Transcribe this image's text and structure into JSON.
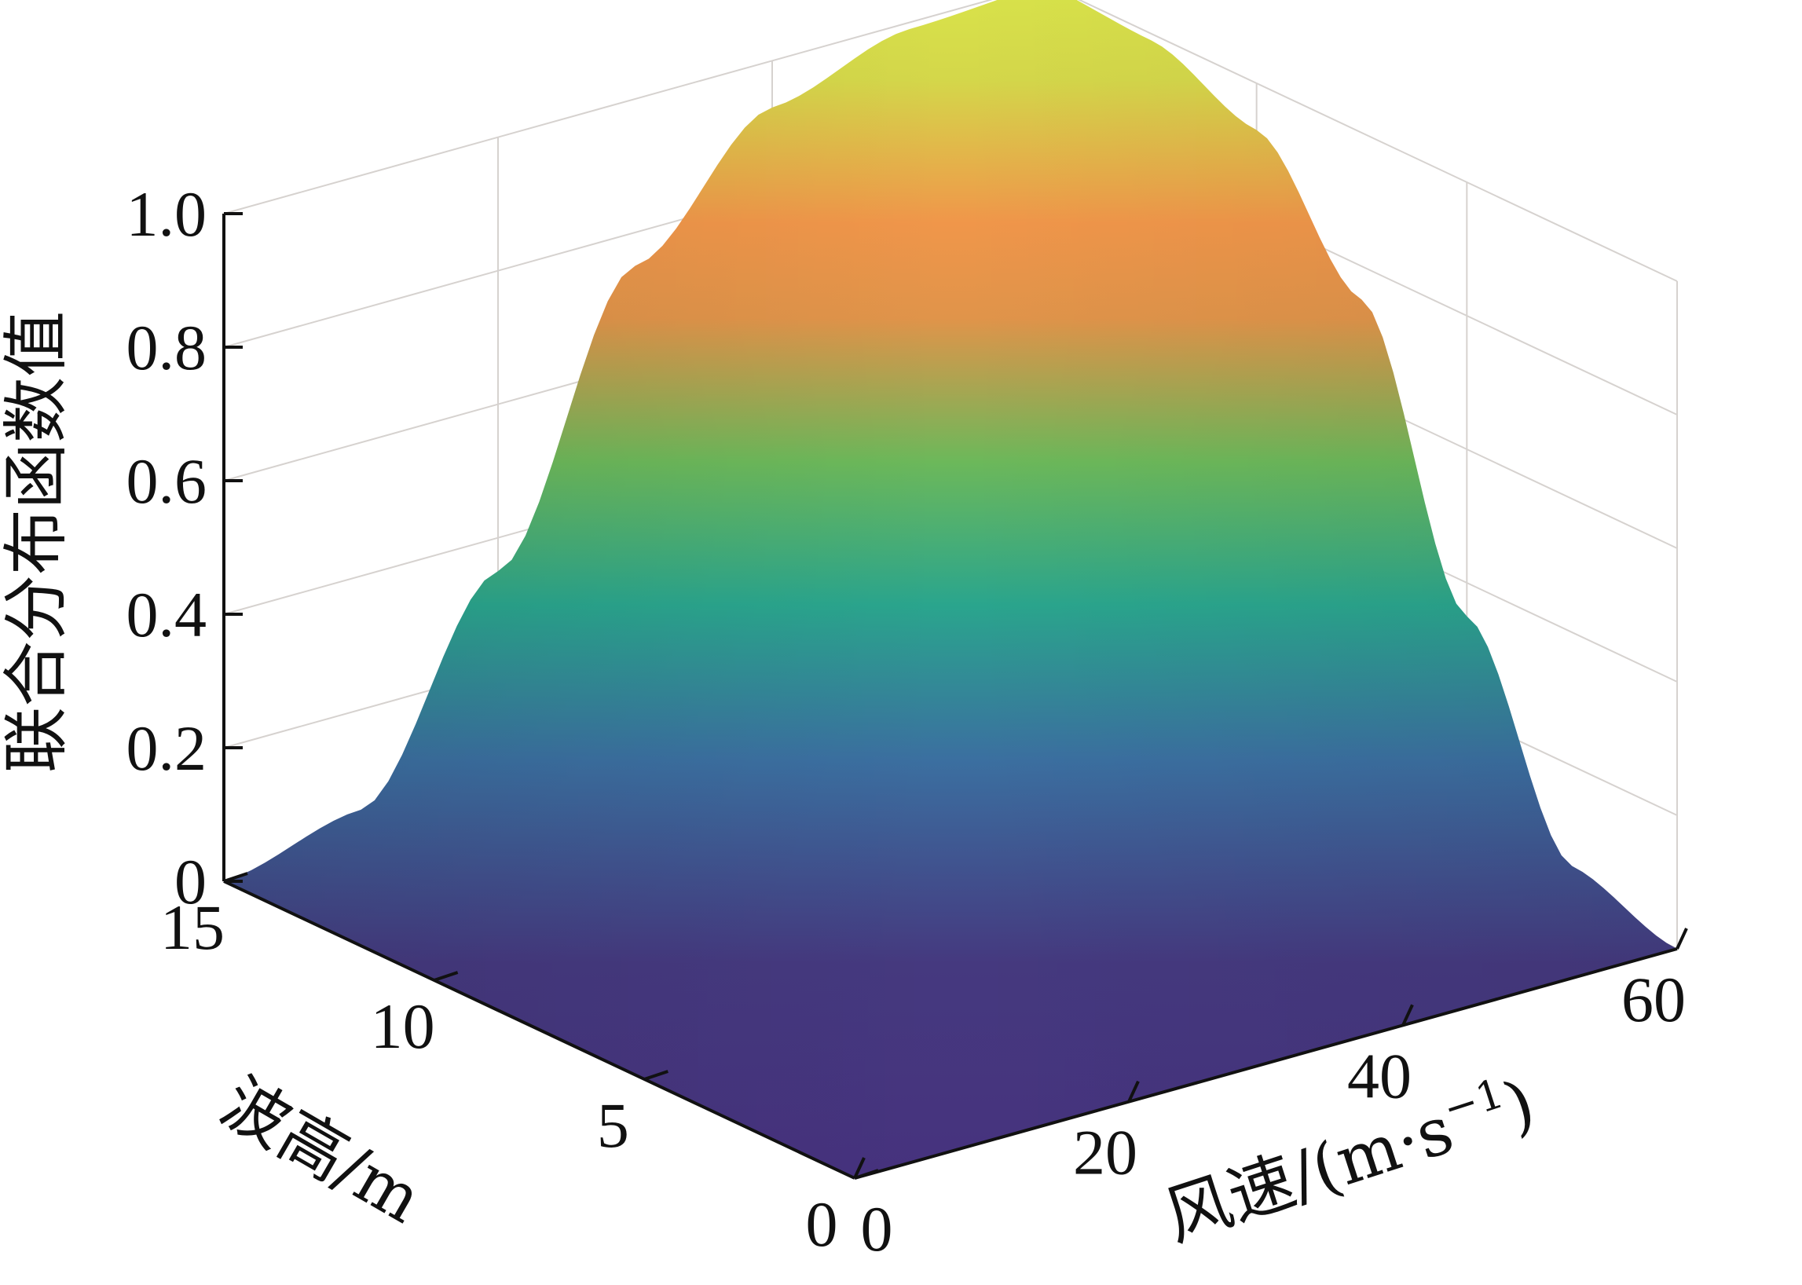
{
  "chart_data": {
    "type": "surface",
    "zlabel": "联合分布函数值",
    "xlabel": "风速/(m·s",
    "xlabel_sup": "−1",
    "xlabel_suffix": ")",
    "ylabel": "波高/m",
    "x_range": [
      0,
      60
    ],
    "y_range": [
      0,
      15
    ],
    "z_range": [
      0,
      1
    ],
    "x_ticks": [
      "0",
      "20",
      "40",
      "60"
    ],
    "y_ticks": [
      "0",
      "5",
      "10",
      "15"
    ],
    "z_ticks": [
      "0",
      "0.2",
      "0.4",
      "0.6",
      "0.8",
      "1.0"
    ],
    "colormap": [
      "#440154",
      "#46327e",
      "#365c8d",
      "#277f8e",
      "#1fa187",
      "#4ac16d",
      "#f2994a",
      "#d7e04a"
    ],
    "grid": true,
    "surface": {
      "description_function": "joint CDF, rises from 0 at (0,0) to 1.0 at (60,15)",
      "x_samples": [
        0,
        10,
        20,
        30,
        40,
        50,
        60
      ],
      "y_samples": [
        0,
        2.5,
        5,
        7.5,
        10,
        12.5,
        15
      ],
      "z_at_xmax": [
        0,
        0.05,
        0.35,
        0.75,
        0.93,
        0.99,
        1.0
      ],
      "z_at_ymax": [
        0,
        0.05,
        0.35,
        0.75,
        0.93,
        0.99,
        1.0
      ]
    }
  }
}
